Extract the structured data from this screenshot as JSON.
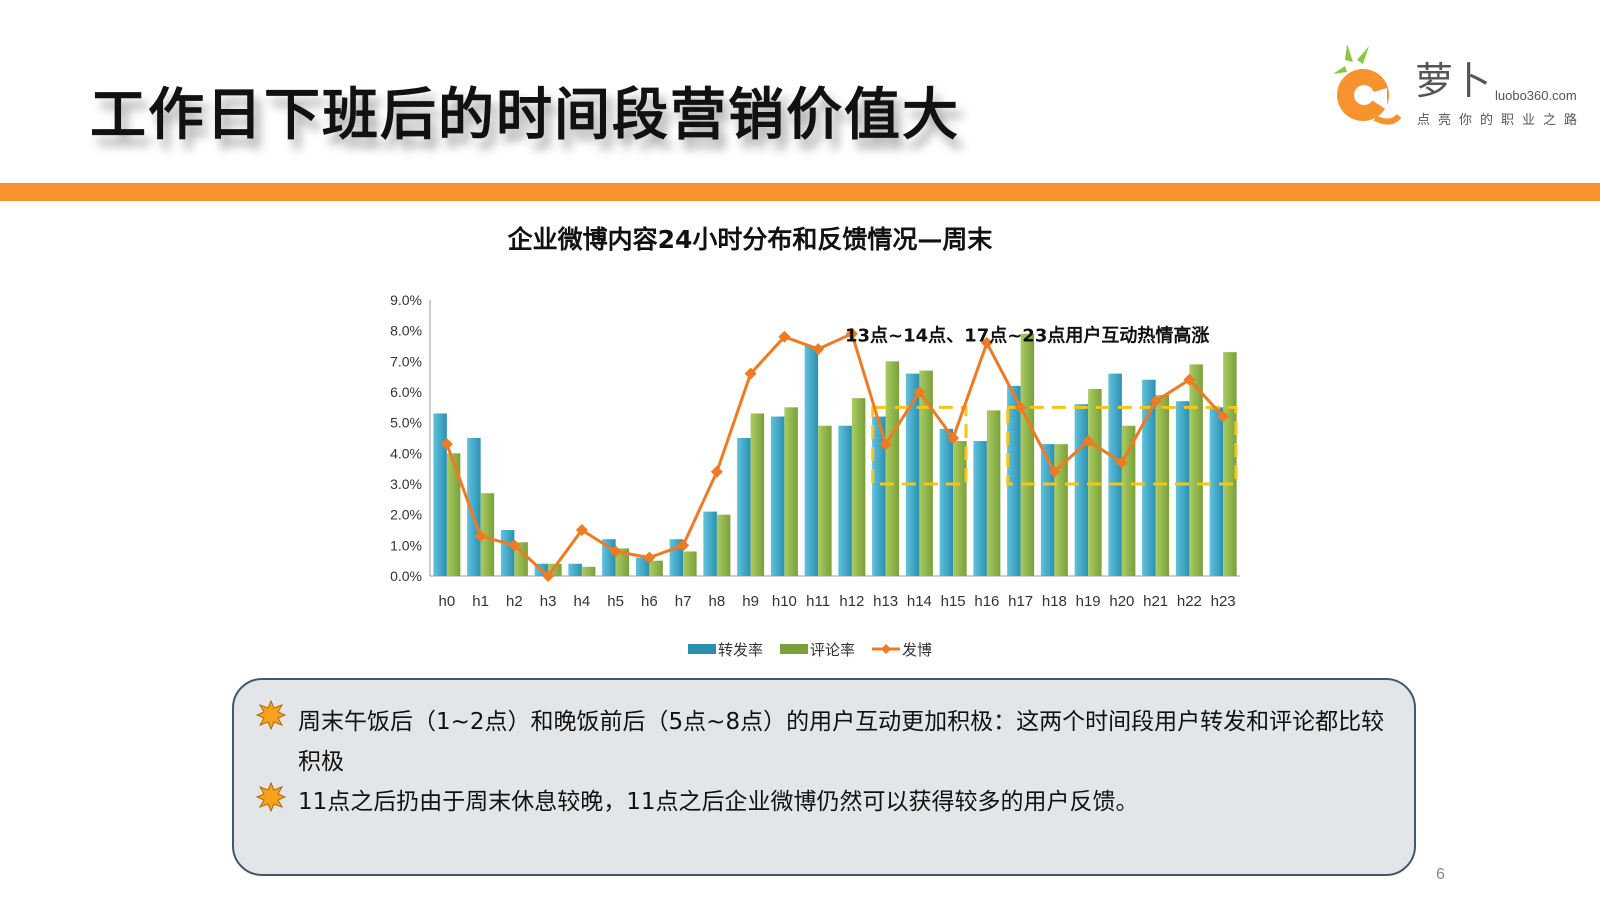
{
  "slide": {
    "title": "工作日下班后的时间段营销价值大",
    "page_number": "6"
  },
  "logo": {
    "name": "萝卜",
    "url": "luobo360.com",
    "slogan": "点亮你的职业之路"
  },
  "colors": {
    "accent": "#f7922e",
    "repost": "#2b8fb0",
    "comment": "#7aa03a",
    "post": "#f07a22",
    "highlight": "#f5c518"
  },
  "chart_data": {
    "type": "bar",
    "title": "企业微博内容24小时分布和反馈情况—周末",
    "categories": [
      "h0",
      "h1",
      "h2",
      "h3",
      "h4",
      "h5",
      "h6",
      "h7",
      "h8",
      "h9",
      "h10",
      "h11",
      "h12",
      "h13",
      "h14",
      "h15",
      "h16",
      "h17",
      "h18",
      "h19",
      "h20",
      "h21",
      "h22",
      "h23"
    ],
    "ylim": [
      0,
      9
    ],
    "yticks": [
      "0.0%",
      "1.0%",
      "2.0%",
      "3.0%",
      "4.0%",
      "5.0%",
      "6.0%",
      "7.0%",
      "8.0%",
      "9.0%"
    ],
    "series": [
      {
        "name": "转发率",
        "kind": "bar",
        "values": [
          5.3,
          4.5,
          1.5,
          0.4,
          0.4,
          1.2,
          0.6,
          1.2,
          2.1,
          4.5,
          5.2,
          7.5,
          4.9,
          5.2,
          6.6,
          4.8,
          4.4,
          6.2,
          4.3,
          5.6,
          6.6,
          6.4,
          5.7,
          5.5
        ]
      },
      {
        "name": "评论率",
        "kind": "bar",
        "values": [
          4.0,
          2.7,
          1.1,
          0.4,
          0.3,
          0.9,
          0.5,
          0.8,
          2.0,
          5.3,
          5.5,
          4.9,
          5.8,
          7.0,
          6.7,
          4.4,
          5.4,
          7.9,
          4.3,
          6.1,
          4.9,
          5.9,
          6.9,
          7.3
        ]
      },
      {
        "name": "发博",
        "kind": "line",
        "values": [
          4.3,
          1.3,
          1.0,
          0.0,
          1.5,
          0.8,
          0.6,
          1.0,
          3.4,
          6.6,
          7.8,
          7.4,
          7.9,
          4.3,
          6.0,
          4.5,
          7.6,
          5.5,
          3.4,
          4.4,
          3.7,
          5.7,
          6.4,
          5.2
        ]
      }
    ],
    "annotation": "13点~14点、17点~23点用户互动热情高涨",
    "highlight_ranges": [
      [
        "h13",
        "h15"
      ],
      [
        "h17",
        "h23"
      ]
    ],
    "legend_position": "bottom"
  },
  "notes": [
    {
      "text": "周末午饭后（1~2点）和晚饭前后（5点~8点）的用户互动更加积极：这两个时间段用户转发和评论都比较"
    },
    {
      "text": "积极"
    },
    {
      "text": "11点之后扔由于周末休息较晚，11点之后企业微博仍然可以获得较多的用户反馈。"
    }
  ]
}
